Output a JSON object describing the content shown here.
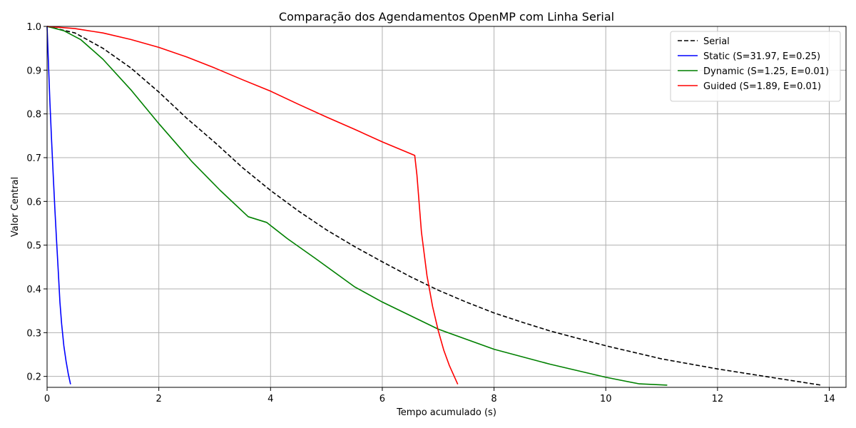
{
  "chart_data": {
    "type": "line",
    "title": "Comparação dos Agendamentos OpenMP com Linha Serial",
    "xlabel": "Tempo acumulado (s)",
    "ylabel": "Valor Central",
    "xlim": [
      0,
      14.3
    ],
    "ylim": [
      0.175,
      1.0
    ],
    "xticks": [
      0,
      2,
      4,
      6,
      8,
      10,
      12,
      14
    ],
    "yticks": [
      0.2,
      0.3,
      0.4,
      0.5,
      0.6,
      0.7,
      0.8,
      0.9,
      1.0
    ],
    "grid": true,
    "legend_position": "top-right",
    "series": [
      {
        "name": "Serial",
        "color": "#000000",
        "dash": "dashed",
        "x": [
          0,
          0.5,
          1.0,
          1.5,
          2.0,
          2.5,
          3.0,
          3.5,
          4.0,
          4.5,
          5.0,
          5.5,
          6.0,
          6.5,
          7.0,
          7.5,
          8.0,
          8.5,
          9.0,
          10.0,
          11.0,
          12.0,
          13.0,
          13.85
        ],
        "y": [
          1.0,
          0.985,
          0.95,
          0.905,
          0.85,
          0.79,
          0.735,
          0.677,
          0.625,
          0.578,
          0.535,
          0.497,
          0.462,
          0.428,
          0.397,
          0.37,
          0.345,
          0.324,
          0.304,
          0.27,
          0.24,
          0.217,
          0.197,
          0.18
        ]
      },
      {
        "name": "Static (S=31.97, E=0.25)",
        "color": "#0000ff",
        "dash": "solid",
        "x": [
          0,
          0.02,
          0.05,
          0.08,
          0.11,
          0.14,
          0.17,
          0.2,
          0.23,
          0.26,
          0.3,
          0.34,
          0.38,
          0.42
        ],
        "y": [
          1.0,
          0.93,
          0.83,
          0.74,
          0.66,
          0.58,
          0.51,
          0.44,
          0.37,
          0.32,
          0.27,
          0.235,
          0.205,
          0.182
        ]
      },
      {
        "name": "Dynamic (S=1.25, E=0.01)",
        "color": "#008000",
        "dash": "solid",
        "x": [
          0,
          0.3,
          0.6,
          1.0,
          1.5,
          2.0,
          2.6,
          3.1,
          3.6,
          3.93,
          4.3,
          4.8,
          5.5,
          6.0,
          7.0,
          8.0,
          9.0,
          10.0,
          10.6,
          11.1
        ],
        "y": [
          1.0,
          0.99,
          0.97,
          0.925,
          0.855,
          0.778,
          0.69,
          0.625,
          0.565,
          0.552,
          0.515,
          0.47,
          0.405,
          0.37,
          0.308,
          0.262,
          0.228,
          0.198,
          0.183,
          0.18
        ]
      },
      {
        "name": "Guided (S=1.89, E=0.01)",
        "color": "#ff0000",
        "dash": "solid",
        "x": [
          0,
          0.5,
          1.0,
          1.5,
          2.0,
          2.5,
          3.0,
          3.5,
          4.0,
          4.5,
          5.0,
          5.5,
          6.0,
          6.58,
          6.62,
          6.7,
          6.8,
          6.9,
          7.0,
          7.1,
          7.2,
          7.35
        ],
        "y": [
          1.0,
          0.995,
          0.985,
          0.97,
          0.952,
          0.93,
          0.905,
          0.878,
          0.852,
          0.822,
          0.793,
          0.765,
          0.736,
          0.705,
          0.66,
          0.53,
          0.43,
          0.36,
          0.305,
          0.26,
          0.225,
          0.182
        ]
      }
    ]
  }
}
